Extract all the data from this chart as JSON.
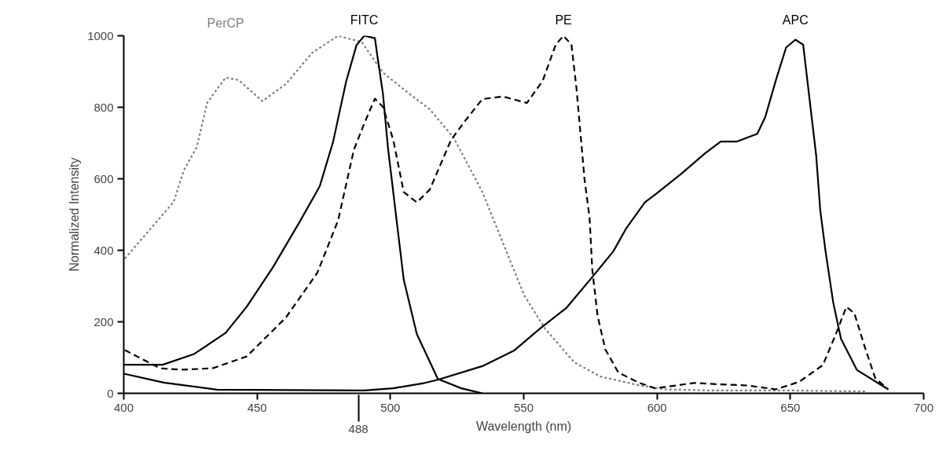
{
  "chart_data": {
    "type": "line",
    "xlabel": "Wavelength (nm)",
    "ylabel": "Normalized Intensity",
    "xlim": [
      400,
      700
    ],
    "ylim": [
      0,
      1000
    ],
    "xticks": [
      400,
      450,
      500,
      550,
      600,
      650,
      700
    ],
    "yticks": [
      0,
      200,
      400,
      600,
      800,
      1000
    ],
    "grid": false,
    "marker": "none",
    "ref_lines": [
      {
        "axis": "x",
        "value": 488,
        "label": "488"
      }
    ],
    "series": [
      {
        "name": "PerCP",
        "color": "#808080",
        "line_style": "dotted",
        "x": [
          400.4,
          418.7,
          422.5,
          427.4,
          431.3,
          438.2,
          443.1,
          452,
          460.8,
          470.6,
          480.4,
          489.3,
          497.2,
          505,
          514.8,
          523.7,
          534.5,
          542.3,
          550.2,
          558,
          568.9,
          578.7,
          593.4,
          603.2,
          620,
          650,
          678
        ],
        "values": [
          377,
          535,
          623,
          689,
          813,
          883,
          876,
          817,
          865,
          952,
          1000,
          982,
          897,
          850,
          794,
          715,
          563,
          419,
          274,
          181,
          87,
          47,
          22,
          11,
          8,
          8,
          5
        ]
      },
      {
        "name": "FITC",
        "color": "#000000",
        "line_style": "solid",
        "x": [
          400,
          414.6,
          426.4,
          438.2,
          446.1,
          455.9,
          465.7,
          473.5,
          478.5,
          483.4,
          487.3,
          490.2,
          494.2,
          495.2,
          497.2,
          499.1,
          502.1,
          505,
          509.9,
          517.8,
          526.6,
          534.5
        ],
        "values": [
          80,
          80,
          110,
          169,
          242,
          352,
          476,
          579,
          703,
          872,
          974,
          1000,
          993,
          939,
          838,
          686,
          498,
          318,
          166,
          40,
          14,
          0
        ]
      },
      {
        "name": "PE",
        "color": "#000000",
        "line_style": "dashed",
        "x": [
          400.4,
          413.6,
          421.5,
          433.3,
          446.1,
          460.8,
          472.6,
          480.4,
          486.3,
          490.2,
          494.2,
          497.2,
          501.1,
          505,
          509.9,
          514.8,
          522.7,
          527.6,
          534.5,
          542.3,
          551.2,
          557.1,
          562,
          564.9,
          567.9,
          569.8,
          572.8,
          574.7,
          575.7,
          577.7,
          580.6,
          585.5,
          593.4,
          599.3,
          614,
          623.9,
          633.7,
          644.5,
          653.3,
          662.2,
          667.1,
          671,
          674,
          677.9,
          681.8,
          686.7
        ],
        "values": [
          121,
          70,
          66,
          70,
          103,
          212,
          337,
          484,
          681,
          755,
          824,
          801,
          708,
          563,
          534,
          570,
          708,
          758,
          823,
          830,
          812,
          874,
          975,
          1000,
          975,
          852,
          599,
          491,
          347,
          217,
          123,
          58,
          29,
          14,
          29,
          25,
          22,
          11,
          32,
          79,
          166,
          242,
          224,
          130,
          43,
          11
        ]
      },
      {
        "name": "APC",
        "color": "#000000",
        "line_style": "solid",
        "x": [
          400,
          415,
          435,
          490,
          501,
          512.9,
          517.8,
          534.5,
          546.3,
          556.1,
          565.9,
          575.7,
          583.6,
          588.5,
          595.4,
          599.3,
          609.1,
          618,
          623.9,
          629.8,
          637.6,
          640.6,
          644.5,
          648.4,
          651.9,
          654.8,
          657.3,
          659.7,
          661.2,
          663.2,
          666.1,
          669,
          675,
          686.7
        ],
        "values": [
          55,
          30,
          10,
          8,
          14,
          29,
          38,
          76,
          119,
          181,
          238,
          325,
          397,
          462,
          534,
          556,
          614,
          671,
          704,
          704,
          726,
          773,
          874,
          967,
          989,
          975,
          816,
          664,
          513,
          397,
          253,
          152,
          65,
          11
        ]
      }
    ]
  }
}
